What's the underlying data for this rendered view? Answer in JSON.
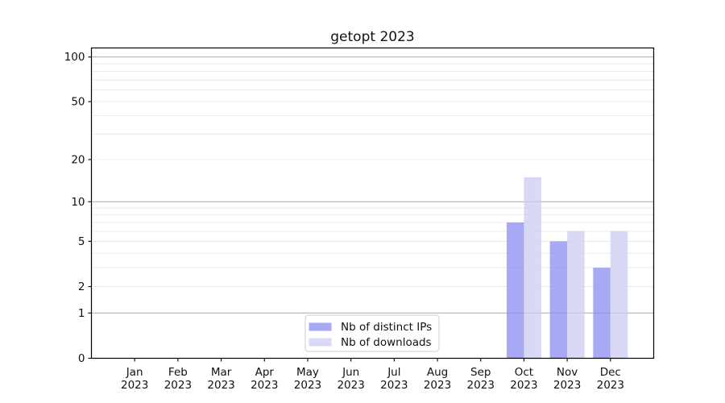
{
  "chart_data": {
    "type": "bar",
    "title": "getopt 2023",
    "categories": [
      "Jan",
      "Feb",
      "Mar",
      "Apr",
      "May",
      "Jun",
      "Jul",
      "Aug",
      "Sep",
      "Oct",
      "Nov",
      "Dec"
    ],
    "category_year": "2023",
    "series": [
      {
        "name": "Nb of distinct IPs",
        "color": "#8b8bf2",
        "opacity": 0.75,
        "values": [
          0,
          0,
          0,
          0,
          0,
          0,
          0,
          0,
          0,
          7,
          5,
          3
        ]
      },
      {
        "name": "Nb of downloads",
        "color": "#ccccf3",
        "opacity": 0.75,
        "values": [
          0,
          0,
          0,
          0,
          0,
          0,
          0,
          0,
          0,
          15,
          6,
          6
        ]
      }
    ],
    "yscale": "log1p",
    "ylim": [
      0,
      115
    ],
    "yticks_labeled": [
      0,
      1,
      2,
      5,
      10,
      20,
      50,
      100
    ],
    "ytick_labels": [
      "0",
      "1",
      "2",
      "5",
      "10",
      "20",
      "50",
      "100"
    ],
    "yticks_major_grid": [
      1,
      10,
      100
    ],
    "yticks_minor_grid": [
      2,
      3,
      4,
      5,
      6,
      7,
      8,
      9,
      20,
      30,
      40,
      50,
      60,
      70,
      80,
      90
    ],
    "grid": {
      "major_color": "#b2b2b2",
      "minor_color": "#e8e8e8",
      "on": true
    },
    "axis_color": "#000000",
    "legend": {
      "position": "lower-center",
      "border_color": "#cccccc",
      "background": "#ffffff"
    },
    "xlabel": "",
    "ylabel": ""
  }
}
